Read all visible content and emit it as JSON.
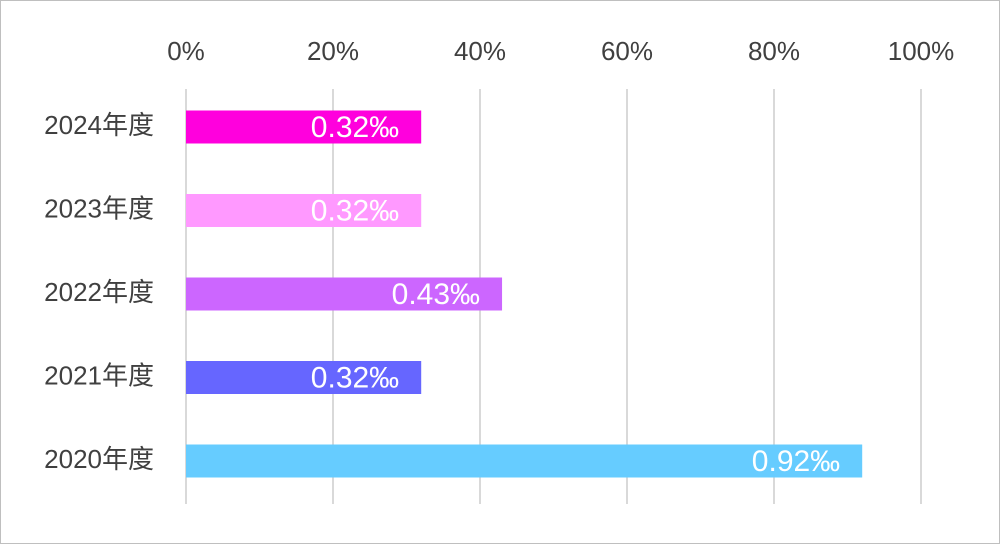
{
  "chart_data": {
    "type": "bar",
    "orientation": "horizontal",
    "xlim": [
      0,
      100
    ],
    "x_ticks": [
      0,
      20,
      40,
      60,
      80,
      100
    ],
    "x_tick_labels": [
      "0%",
      "20%",
      "40%",
      "60%",
      "80%",
      "100%"
    ],
    "x_axis_position": "top",
    "grid": true,
    "categories": [
      "2024年度",
      "2023年度",
      "2022年度",
      "2021年度",
      "2020年度"
    ],
    "values": [
      32,
      32,
      43,
      32,
      92
    ],
    "data_labels": [
      "0.32‰",
      "0.32‰",
      "0.43‰",
      "0.32‰",
      "0.92‰"
    ],
    "colors": [
      "#ff00dd",
      "#ff99ff",
      "#cc66ff",
      "#6666ff",
      "#66ccff"
    ]
  }
}
